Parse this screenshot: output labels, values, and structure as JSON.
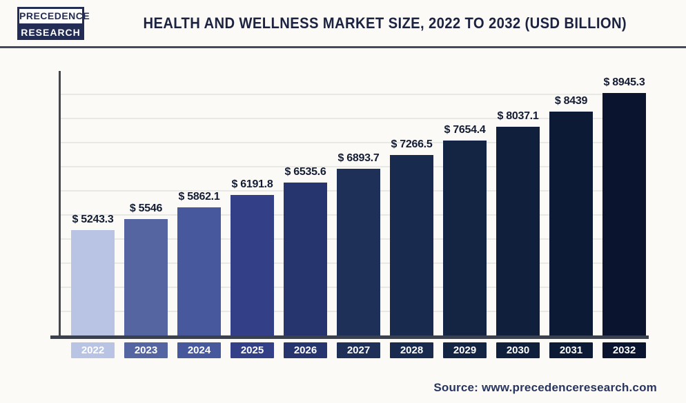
{
  "header": {
    "logo_line1": "PRECEDENCE",
    "logo_line2": "RESEARCH",
    "title": "HEALTH AND WELLNESS MARKET SIZE, 2022 TO 2032 (USD BILLION)"
  },
  "chart_data": {
    "type": "bar",
    "title": "Health and Wellness Market Size, 2022 to 2032 (USD Billion)",
    "unit": "USD Billion",
    "categories": [
      "2022",
      "2023",
      "2024",
      "2025",
      "2026",
      "2027",
      "2028",
      "2029",
      "2030",
      "2031",
      "2032"
    ],
    "values": [
      5243.3,
      5546,
      5862.1,
      6191.8,
      6535.6,
      6893.7,
      7266.5,
      7654.4,
      8037.1,
      8439,
      8945.3
    ],
    "labels": [
      "$ 5243.3",
      "$ 5546",
      "$ 5862.1",
      "$ 6191.8",
      "$ 6535.6",
      "$ 6893.7",
      "$ 7266.5",
      "$ 7654.4",
      "$ 8037.1",
      "$ 8439",
      "$ 8945.3"
    ],
    "bar_colors": [
      "#b9c4e4",
      "#5565a2",
      "#47589c",
      "#333f87",
      "#27356e",
      "#1e3058",
      "#182a4e",
      "#142544",
      "#10203c",
      "#0d1a35",
      "#0a142e"
    ],
    "grid": "horizontal-only",
    "legend": "none",
    "value_axis": "hidden",
    "xlabel": "",
    "ylabel": ""
  },
  "footer": {
    "source": "Source: www.precedenceresearch.com"
  },
  "colors": {
    "navy_title": "#1b2340",
    "logo_navy": "#232c54",
    "axis": "#39414f",
    "gridline": "#e8e8e5",
    "background": "#fbfaf7",
    "label_text": "#131c33",
    "source_text": "#27355f"
  }
}
